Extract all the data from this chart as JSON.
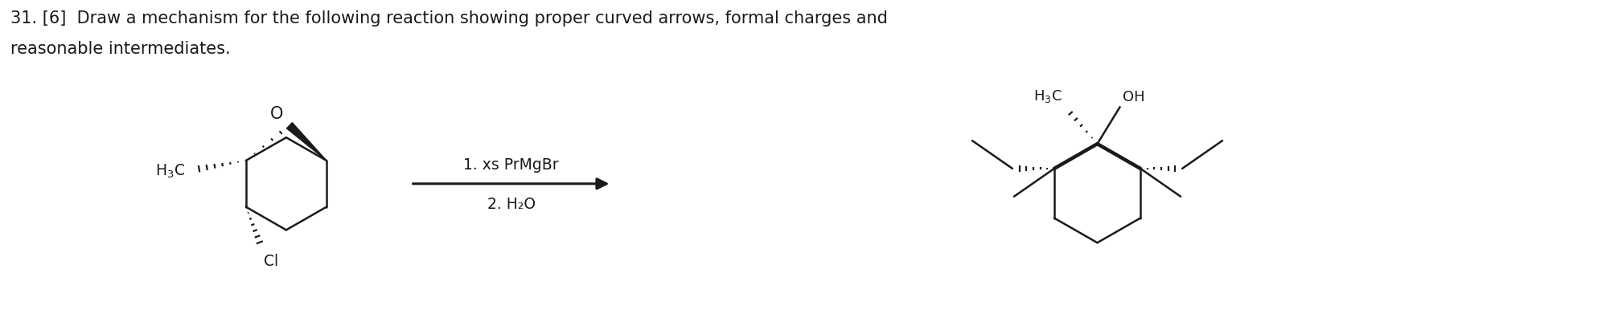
{
  "title_line1": "31. [6]  Draw a mechanism for the following reaction showing proper curved arrows, formal charges and",
  "title_line2": "reasonable intermediates.",
  "reagent_line1": "1. xs PrMgBr",
  "reagent_line2": "2. H₂O",
  "bg_color": "#ffffff",
  "text_color": "#1a1a1a",
  "font_size_title": 15,
  "font_size_reagent": 13.5,
  "fig_width": 20.02,
  "fig_height": 4.02
}
